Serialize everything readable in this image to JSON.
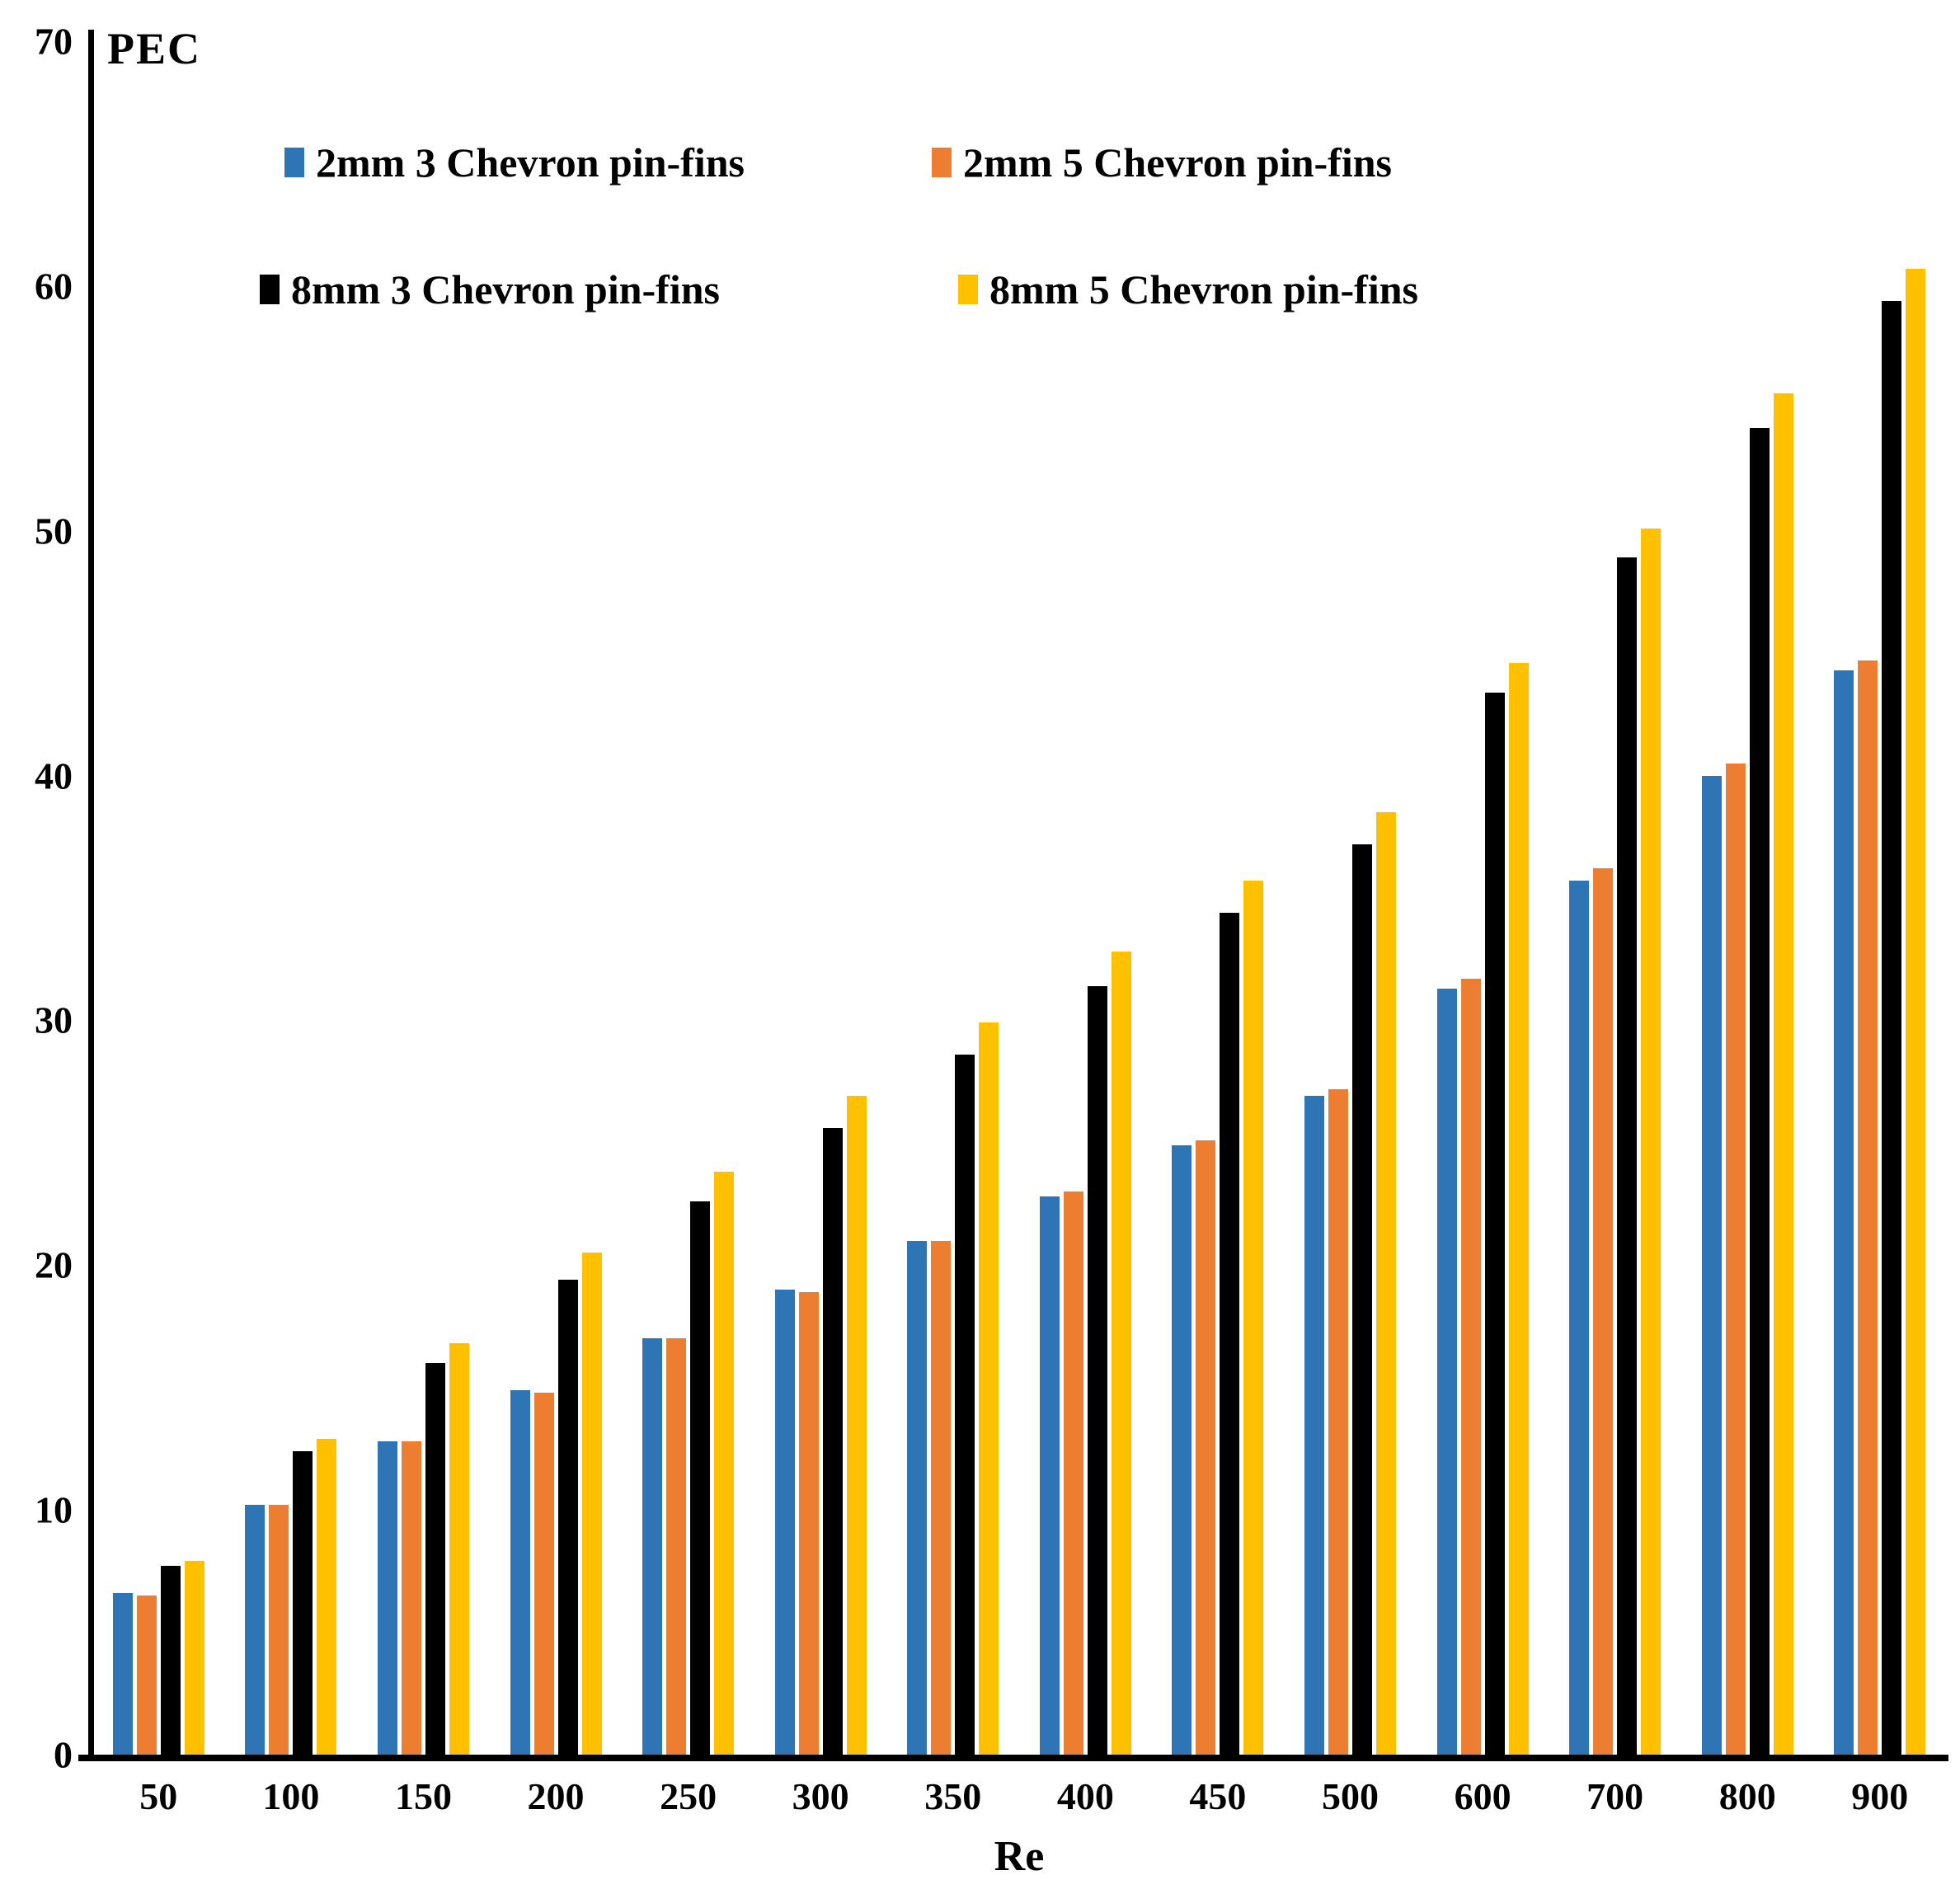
{
  "chart_data": {
    "type": "bar",
    "title": "",
    "ylabel": "PEC",
    "xlabel": "Re",
    "ylim": [
      0,
      70
    ],
    "yticks": [
      0,
      10,
      20,
      30,
      40,
      50,
      60,
      70
    ],
    "grid": false,
    "legend_position": "top-left-inside",
    "categories": [
      "50",
      "100",
      "150",
      "200",
      "250",
      "300",
      "350",
      "400",
      "450",
      "500",
      "600",
      "700",
      "800",
      "900"
    ],
    "series": [
      {
        "name": "2mm 3 Chevron pin-fins",
        "color": "#2E75B6",
        "values": [
          6.6,
          10.2,
          12.8,
          14.9,
          17.0,
          19.0,
          21.0,
          22.8,
          24.9,
          26.9,
          31.3,
          35.7,
          40.0,
          44.3
        ]
      },
      {
        "name": "2mm 5 Chevron pin-fins",
        "color": "#ED7D31",
        "values": [
          6.5,
          10.2,
          12.8,
          14.8,
          17.0,
          18.9,
          21.0,
          23.0,
          25.1,
          27.2,
          31.7,
          36.2,
          40.5,
          44.7
        ]
      },
      {
        "name": "8mm 3 Chevron pin-fins",
        "color": "#000000",
        "values": [
          7.7,
          12.4,
          16.0,
          19.4,
          22.6,
          25.6,
          28.6,
          31.4,
          34.4,
          37.2,
          43.4,
          48.9,
          54.2,
          59.4
        ]
      },
      {
        "name": "8mm 5 Chevron pin-fins",
        "color": "#FFC000",
        "values": [
          7.9,
          12.9,
          16.8,
          20.5,
          23.8,
          26.9,
          29.9,
          32.8,
          35.7,
          38.5,
          44.6,
          50.1,
          55.6,
          60.7
        ]
      }
    ]
  }
}
